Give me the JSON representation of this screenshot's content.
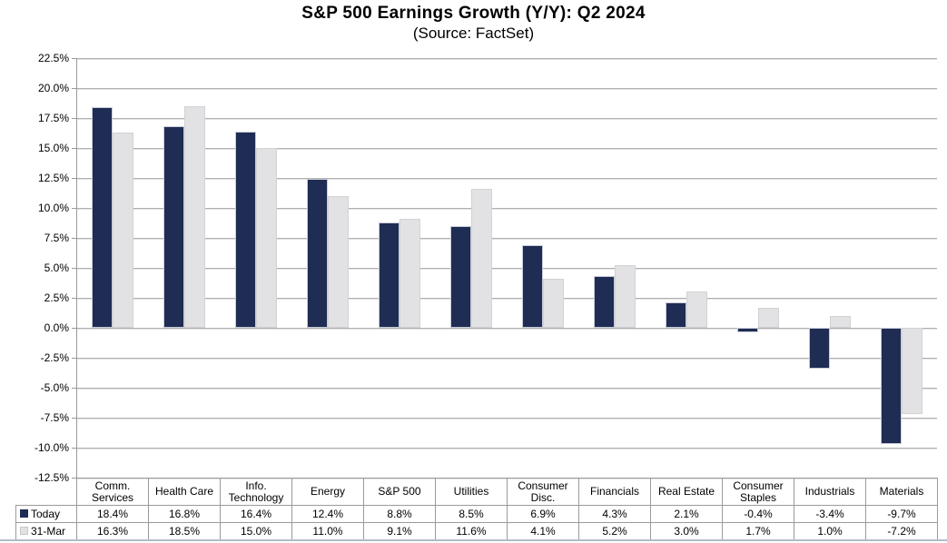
{
  "chart_data": {
    "type": "bar",
    "title": "S&P 500 Earnings Growth (Y/Y): Q2 2024",
    "subtitle": "(Source: FactSet)",
    "categories": [
      "Comm. Services",
      "Health Care",
      "Info. Technology",
      "Energy",
      "S&P 500",
      "Utilities",
      "Consumer Disc.",
      "Financials",
      "Real Estate",
      "Consumer Staples",
      "Industrials",
      "Materials"
    ],
    "series": [
      {
        "name": "Today",
        "color": "#1f2c54",
        "values": [
          18.4,
          16.8,
          16.4,
          12.4,
          8.8,
          8.5,
          6.9,
          4.3,
          2.1,
          -0.4,
          -3.4,
          -9.7
        ]
      },
      {
        "name": "31-Mar",
        "color": "#e2e2e4",
        "values": [
          16.3,
          18.5,
          15.0,
          11.0,
          9.1,
          11.6,
          4.1,
          5.2,
          3.0,
          1.7,
          1.0,
          -7.2
        ]
      }
    ],
    "ylim": [
      -12.5,
      22.5
    ],
    "ytick_step": 2.5,
    "ytick_labels": [
      "22.5%",
      "20.0%",
      "17.5%",
      "15.0%",
      "12.5%",
      "10.0%",
      "7.5%",
      "5.0%",
      "2.5%",
      "0.0%",
      "-2.5%",
      "-5.0%",
      "-7.5%",
      "-10.0%",
      "-12.5%"
    ],
    "value_format": "percent_one_decimal",
    "grid": true,
    "legend_position": "table-left",
    "table_row_labels": [
      "Today",
      "31-Mar"
    ]
  }
}
